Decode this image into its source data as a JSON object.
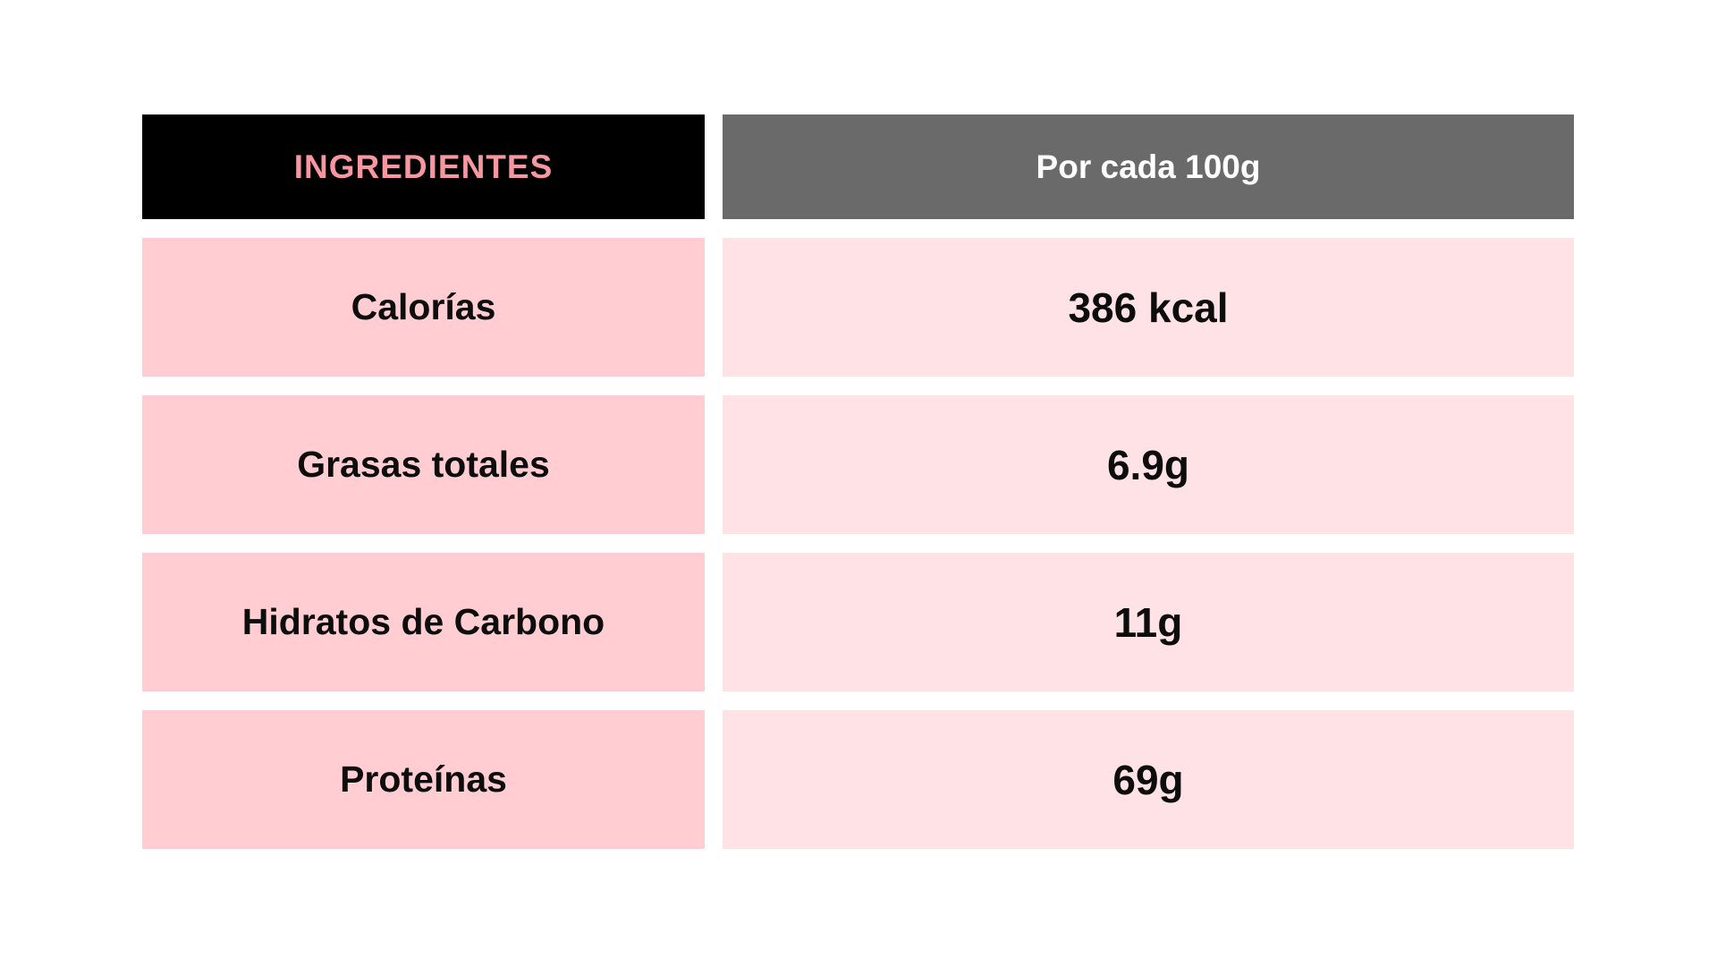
{
  "chart_data": {
    "type": "table",
    "columns": [
      "INGREDIENTES",
      "Por cada 100g"
    ],
    "rows": [
      [
        "Calorías",
        "386 kcal"
      ],
      [
        "Grasas totales",
        "6.9g"
      ],
      [
        "Hidratos de Carbono",
        "11g"
      ],
      [
        "Proteínas",
        "69g"
      ]
    ],
    "title": "",
    "layout": "two-column nutrition facts table, header row + 4 data rows, white gaps between cells"
  },
  "header": {
    "ingredients_label": "INGREDIENTES",
    "per_100g_label": "Por cada 100g"
  },
  "rows": [
    {
      "label": "Calorías",
      "value": "386 kcal"
    },
    {
      "label": "Grasas totales",
      "value": "6.9g"
    },
    {
      "label": "Hidratos de Carbono",
      "value": "11g"
    },
    {
      "label": "Proteínas",
      "value": "69g"
    }
  ],
  "colors": {
    "page_background": "#ffffff",
    "header_left_background": "#000000",
    "header_left_text": "#f797a0",
    "header_right_background": "#6a6a6a",
    "header_right_text": "#ffffff",
    "row_label_background": "#ffcdd2",
    "row_value_background": "#ffe2e5",
    "row_text": "#0d0d0d"
  }
}
